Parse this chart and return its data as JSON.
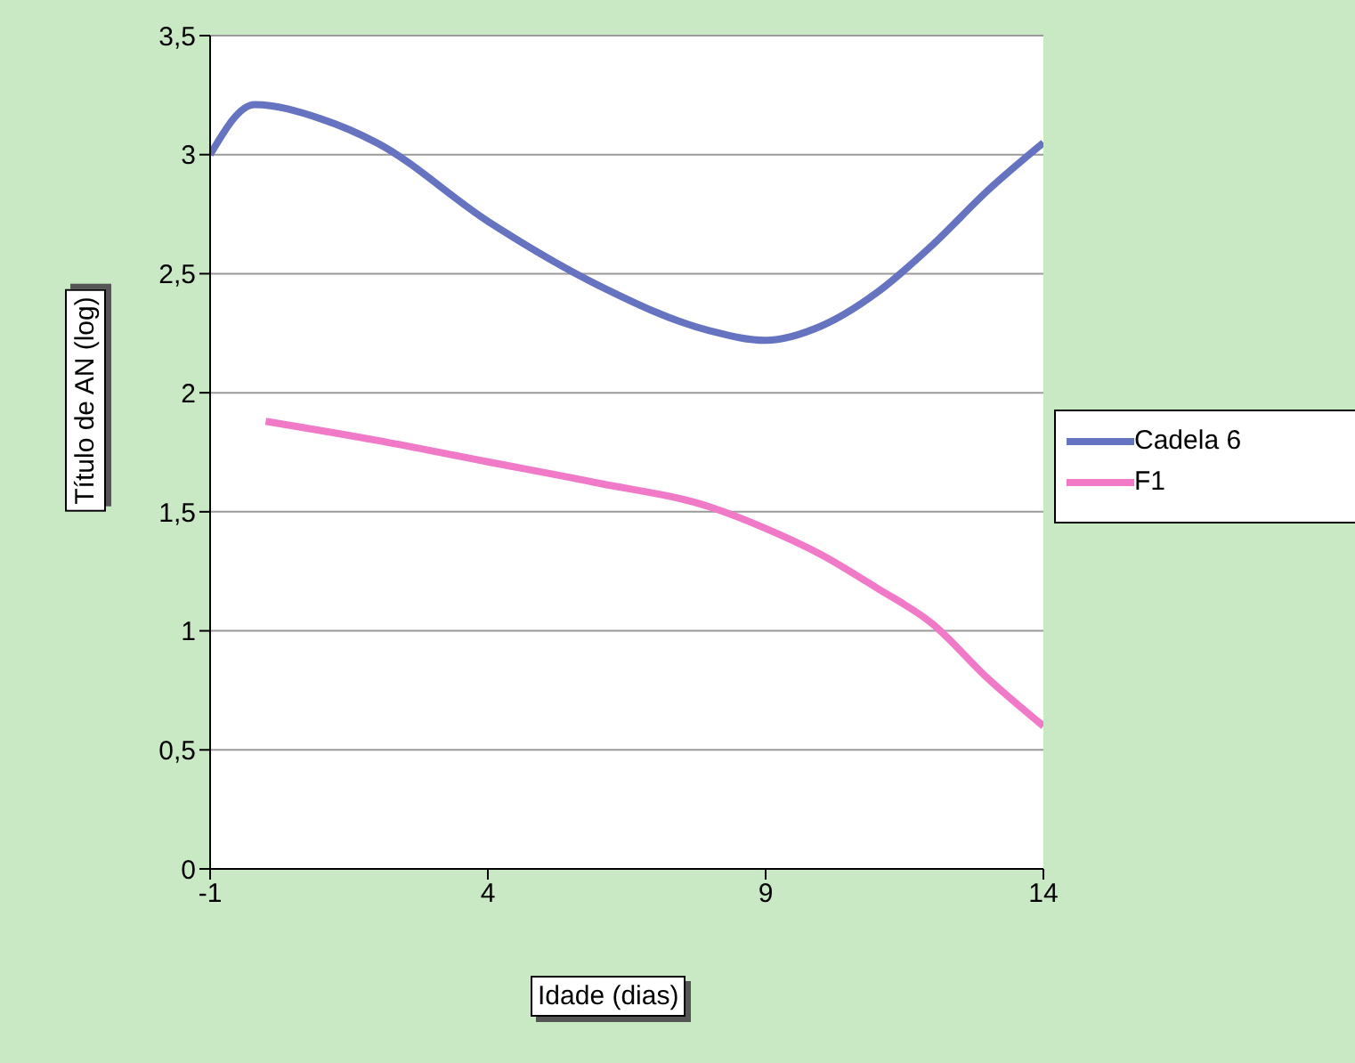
{
  "chart_data": {
    "type": "line",
    "xlabel": "Idade (dias)",
    "ylabel": "Título de AN (log)",
    "xlim": [
      -1,
      14
    ],
    "xticks": [
      -1,
      4,
      9,
      14
    ],
    "ylim": [
      0,
      3.5
    ],
    "yticks": [
      0,
      {
        "value": 0.5,
        "label": "0,5"
      },
      1,
      {
        "value": 1.5,
        "label": "1,5"
      },
      2,
      {
        "value": 2.5,
        "label": "2,5"
      },
      3,
      {
        "value": 3.5,
        "label": "3,5"
      }
    ],
    "grid": "y",
    "legend": "right",
    "marker": "none",
    "line_style": "solid",
    "series": [
      {
        "name": "Cadela 6",
        "color": "#6673c0",
        "x": [
          -1,
          -0.2,
          1,
          2,
          4,
          6,
          8,
          9,
          10,
          11,
          12,
          13,
          14
        ],
        "values": [
          3.0,
          3.21,
          3.15,
          3.05,
          2.72,
          2.45,
          2.26,
          2.22,
          2.28,
          2.42,
          2.62,
          2.85,
          3.05
        ]
      },
      {
        "name": "F1",
        "color": "#f07ac8",
        "x": [
          0,
          2,
          4,
          6,
          8,
          9,
          10,
          11,
          12,
          13,
          14
        ],
        "values": [
          1.88,
          1.8,
          1.71,
          1.62,
          1.52,
          1.43,
          1.32,
          1.18,
          1.03,
          0.8,
          0.6
        ]
      }
    ]
  }
}
